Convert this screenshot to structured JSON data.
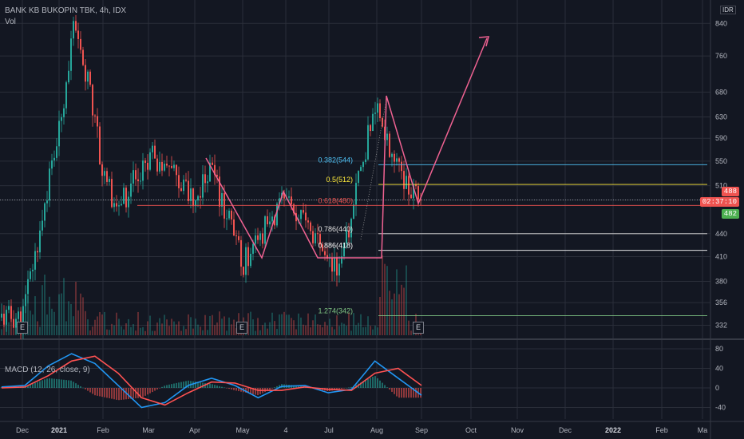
{
  "header": {
    "symbol_title": "BANK KB BUKOPIN TBK, 4h, IDX",
    "volume_label": "Vol",
    "macd_label": "MACD (12, 26, close, 9)",
    "currency": "IDR"
  },
  "price_tags": {
    "last_price": "488",
    "countdown": "02:37:10",
    "macd_tag": "482"
  },
  "earnings_marker_label": "E",
  "colors": {
    "background": "#131722",
    "up": "#26a69a",
    "down": "#ef5350",
    "pattern_line": "#f06292",
    "grid": "#2a2e39",
    "macd_line": "#2196f3",
    "signal_line": "#ff5252"
  },
  "chart_data": [
    {
      "type": "candlestick",
      "title": "BANK KB BUKOPIN TBK, 4h, IDX",
      "y_scale": "log",
      "y_ticks": [
        332,
        356,
        380,
        410,
        440,
        488,
        510,
        550,
        590,
        630,
        680,
        760,
        840
      ],
      "x_ticks": [
        "Dec",
        "2021",
        "Feb",
        "Mar",
        "Apr",
        "May",
        "4",
        "Jul",
        "Aug",
        "Sep",
        "Oct",
        "Nov",
        "Dec",
        "2022",
        "Feb",
        "Ma"
      ],
      "approx_close_path": [
        [
          "Dec",
          340
        ],
        [
          "Dec",
          420
        ],
        [
          "2021",
          600
        ],
        [
          "2021",
          820
        ],
        [
          "2021",
          700
        ],
        [
          "Feb",
          530
        ],
        [
          "Feb",
          470
        ],
        [
          "Mar",
          560
        ],
        [
          "Mar",
          550
        ],
        [
          "Apr",
          480
        ],
        [
          "Apr",
          540
        ],
        [
          "May",
          400
        ],
        [
          "4",
          490
        ],
        [
          "Jul",
          400
        ],
        [
          "Jul",
          405
        ],
        [
          "Aug",
          660
        ],
        [
          "Aug",
          560
        ],
        [
          "Sep",
          475
        ]
      ],
      "fibonacci_levels": [
        {
          "label": "0.382(544)",
          "value": 544,
          "color": "#4fc3f7"
        },
        {
          "label": "0.5(512)",
          "value": 512,
          "color": "#ffeb3b"
        },
        {
          "label": "0.618(480)",
          "value": 480,
          "color": "#ef5350"
        },
        {
          "label": "0.786(440)",
          "value": 440,
          "color": "#e0e0e0"
        },
        {
          "label": "0.886(418)",
          "value": 418,
          "color": "#ffffff"
        },
        {
          "label": "1.274(342)",
          "value": 342,
          "color": "#81c784"
        }
      ],
      "reference_line": 488,
      "earnings_markers": [
        "2021",
        "4",
        "Sep"
      ]
    },
    {
      "type": "line",
      "title": "MACD (12, 26, close, 9)",
      "y_ticks": [
        80,
        40,
        0,
        -40
      ],
      "series": [
        {
          "values": [
            2,
            5,
            45,
            70,
            50,
            5,
            -40,
            -30,
            5,
            20,
            5,
            -20,
            3,
            5,
            -10,
            -3,
            55,
            20,
            -15
          ]
        },
        {
          "values": [
            0,
            2,
            25,
            55,
            65,
            30,
            -20,
            -35,
            -10,
            12,
            10,
            -5,
            -5,
            2,
            -3,
            -5,
            30,
            40,
            5
          ]
        }
      ],
      "histogram": [
        2,
        3,
        20,
        15,
        -15,
        -25,
        -20,
        5,
        15,
        8,
        -5,
        -15,
        8,
        3,
        -7,
        2,
        25,
        -20,
        -20
      ]
    }
  ]
}
